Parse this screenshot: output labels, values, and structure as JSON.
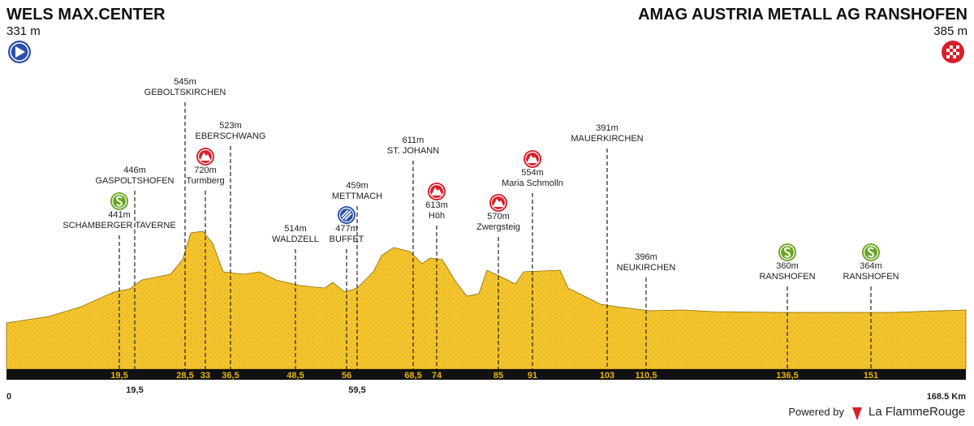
{
  "start": {
    "name": "WELS MAX.CENTER",
    "altitude": "331 m"
  },
  "finish": {
    "name": "AMAG AUSTRIA METALL AG RANSHOFEN",
    "altitude": "385 m"
  },
  "waypoints": [
    {
      "altitude": "441m",
      "name": "SCHAMBERGER TAVERNE",
      "km": "19,5"
    },
    {
      "altitude": "446m",
      "name": "GASPOLTSHOFEN",
      "km": "19,5"
    },
    {
      "altitude": "545m",
      "name": "GEBOLTSKIRCHEN",
      "km": "28,5"
    },
    {
      "altitude": "720m",
      "name": "Turmberg",
      "km": "33"
    },
    {
      "altitude": "523m",
      "name": "EBERSCHWANG",
      "km": "36,5"
    },
    {
      "altitude": "514m",
      "name": "WALDZELL",
      "km": "48,5"
    },
    {
      "altitude": "477m",
      "name": "BUFFET",
      "km": "56"
    },
    {
      "altitude": "459m",
      "name": "METTMACH",
      "km": "59,5"
    },
    {
      "altitude": "611m",
      "name": "ST. JOHANN",
      "km": "68,5"
    },
    {
      "altitude": "613m",
      "name": "Höh",
      "km": "74"
    },
    {
      "altitude": "570m",
      "name": "Zwergsteig",
      "km": "85"
    },
    {
      "altitude": "554m",
      "name": "Maria Schmolln",
      "km": "91"
    },
    {
      "altitude": "391m",
      "name": "MAUERKIRCHEN",
      "km": "103"
    },
    {
      "altitude": "396m",
      "name": "NEUKIRCHEN",
      "km": "110,5"
    },
    {
      "altitude": "360m",
      "name": "RANSHOFEN",
      "km": "136,5"
    },
    {
      "altitude": "364m",
      "name": "RANSHOFEN",
      "km": "151"
    }
  ],
  "axis": {
    "start": "0",
    "end": "168.5 Km"
  },
  "footer": {
    "powered": "Powered by",
    "brand": "La FlammeRouge"
  }
}
